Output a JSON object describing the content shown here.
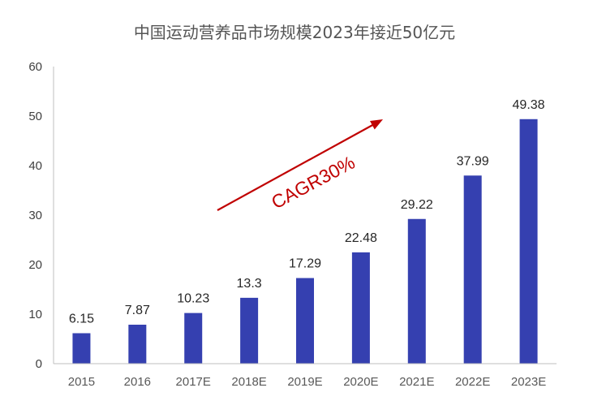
{
  "chart_data": {
    "type": "bar",
    "title": "中国运动营养品市场规模2023年接近50亿元",
    "categories": [
      "2015",
      "2016",
      "2017E",
      "2018E",
      "2019E",
      "2020E",
      "2021E",
      "2022E",
      "2023E"
    ],
    "values": [
      6.15,
      7.87,
      10.23,
      13.3,
      17.29,
      22.48,
      29.22,
      37.99,
      49.38
    ],
    "data_labels": [
      "6.15",
      "7.87",
      "10.23",
      "13.3",
      "17.29",
      "22.48",
      "29.22",
      "37.99",
      "49.38"
    ],
    "yticks": [
      "0",
      "10",
      "20",
      "30",
      "40",
      "50",
      "60"
    ],
    "ylim": [
      0,
      60
    ],
    "xlabel": "",
    "ylabel": "",
    "grid": false,
    "bar_color": "#3540B0",
    "annotation": {
      "text": "CAGR30%",
      "color": "#C00000"
    }
  }
}
